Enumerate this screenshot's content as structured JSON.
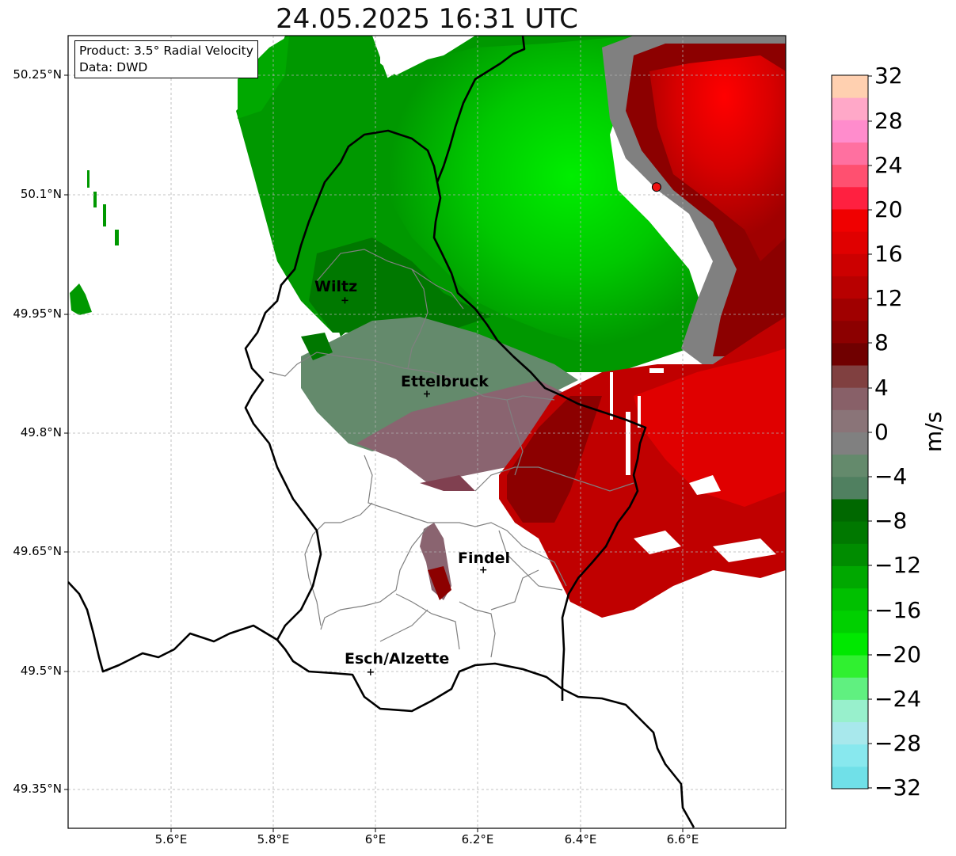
{
  "title": "24.05.2025 16:31 UTC",
  "info": {
    "product": "Product: 3.5° Radial Velocity",
    "data_source": "Data: DWD"
  },
  "axes": {
    "lat_labels": [
      "50.25°N",
      "50.1°N",
      "49.95°N",
      "49.8°N",
      "49.65°N",
      "49.5°N",
      "49.35°N"
    ],
    "lon_labels": [
      "5.6°E",
      "5.8°E",
      "6°E",
      "6.2°E",
      "6.4°E",
      "6.6°E"
    ],
    "lon_range": [
      5.4,
      6.8
    ],
    "lat_range": [
      49.3,
      50.3
    ],
    "grid": true
  },
  "colorbar": {
    "unit": "m/s",
    "range": [
      -32,
      32
    ],
    "ticks": [
      "32",
      "28",
      "24",
      "20",
      "16",
      "12",
      "8",
      "4",
      "0",
      "−4",
      "−8",
      "−12",
      "−16",
      "−20",
      "−24",
      "−28",
      "−32"
    ],
    "colors_bottom_to_top": [
      "#70e0e8",
      "#88e8ee",
      "#a8e8ec",
      "#98f0cc",
      "#60f080",
      "#30f030",
      "#00e800",
      "#00d000",
      "#00c000",
      "#00a800",
      "#008c00",
      "#007800",
      "#006800",
      "#508060",
      "#648a6c",
      "#808080",
      "#8a7478",
      "#886068",
      "#804040",
      "#700000",
      "#8c0000",
      "#a00000",
      "#b80000",
      "#cc0000",
      "#e00000",
      "#f00000",
      "#ff2040",
      "#ff5070",
      "#ff70a0",
      "#ff8ccc",
      "#ffa8c8",
      "#ffd0b0"
    ]
  },
  "cities": [
    {
      "name": "Wiltz",
      "lon": 5.94,
      "lat": 49.966
    },
    {
      "name": "Ettelbruck",
      "lon": 6.1,
      "lat": 49.848
    },
    {
      "name": "Findel",
      "lon": 6.21,
      "lat": 49.626
    },
    {
      "name": "Esch/Alzette",
      "lon": 5.99,
      "lat": 49.497
    }
  ],
  "radar_site": {
    "lon": 6.548,
    "lat": 50.109
  },
  "colors": {
    "inbound_green": "#00c000",
    "outbound_red": "#d00000",
    "zero_gray": "#808080",
    "border": "#000000",
    "canton_lines": "#808080"
  }
}
